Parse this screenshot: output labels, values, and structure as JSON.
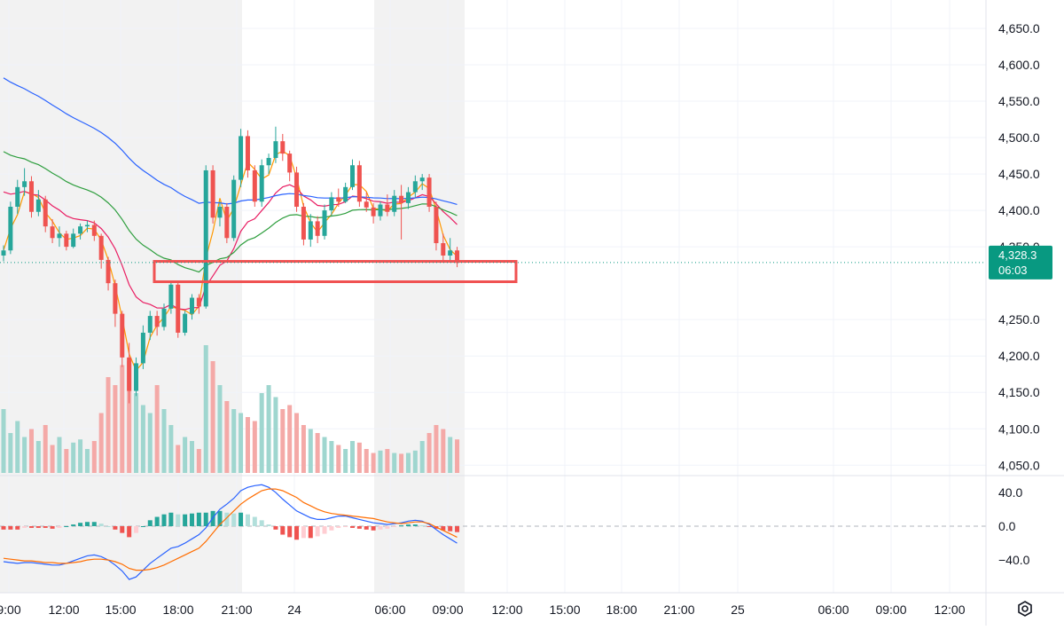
{
  "chart_data": {
    "type": "candlestick",
    "price_axis": {
      "ticks": [
        "4,650.0",
        "4,600.0",
        "4,550.0",
        "4,500.0",
        "4,450.0",
        "4,400.0",
        "4,350.0",
        "4,250.0",
        "4,200.0",
        "4,150.0",
        "4,100.0",
        "4,050.0"
      ],
      "ylim": [
        4035,
        4675
      ]
    },
    "macd_axis": {
      "ticks": [
        "40.0",
        "0.0",
        "−40.0"
      ],
      "ylim": [
        -68,
        50
      ]
    },
    "time_axis": {
      "ticks": [
        "9:00",
        "12:00",
        "15:00",
        "18:00",
        "21:00",
        "24",
        "06:00",
        "09:00",
        "12:00",
        "15:00",
        "18:00",
        "21:00",
        "25",
        "06:00",
        "09:00",
        "12:00"
      ]
    },
    "last_price": {
      "price": "4,328.3",
      "countdown": "06:03",
      "value": 4328.3
    },
    "highlight_zone": {
      "top": 4330,
      "bottom": 4302,
      "color": "#f05252"
    },
    "colors": {
      "up": "#26a69a",
      "down": "#ef5350",
      "vol_up": "#9fd6cf",
      "vol_down": "#f4a9a7",
      "ma_fast": "#ff9800",
      "ma_red": "#e91e63",
      "ma_green": "#2e9e3e",
      "ma_blue": "#2962ff",
      "macd": "#2962ff",
      "signal": "#ff6d00",
      "badge": "#089981",
      "session": "#f2f2f2"
    },
    "candles": [
      {
        "t": 0,
        "o": 4338,
        "h": 4352,
        "l": 4330,
        "c": 4345
      },
      {
        "t": 1,
        "o": 4345,
        "h": 4412,
        "l": 4340,
        "c": 4405
      },
      {
        "t": 2,
        "o": 4405,
        "h": 4442,
        "l": 4395,
        "c": 4432
      },
      {
        "t": 3,
        "o": 4432,
        "h": 4458,
        "l": 4420,
        "c": 4440
      },
      {
        "t": 4,
        "o": 4440,
        "h": 4447,
        "l": 4390,
        "c": 4398
      },
      {
        "t": 5,
        "o": 4398,
        "h": 4428,
        "l": 4392,
        "c": 4415
      },
      {
        "t": 6,
        "o": 4415,
        "h": 4420,
        "l": 4370,
        "c": 4378
      },
      {
        "t": 7,
        "o": 4378,
        "h": 4388,
        "l": 4355,
        "c": 4362
      },
      {
        "t": 8,
        "o": 4362,
        "h": 4378,
        "l": 4350,
        "c": 4368
      },
      {
        "t": 9,
        "o": 4368,
        "h": 4372,
        "l": 4345,
        "c": 4350
      },
      {
        "t": 10,
        "o": 4350,
        "h": 4375,
        "l": 4348,
        "c": 4368
      },
      {
        "t": 11,
        "o": 4368,
        "h": 4382,
        "l": 4360,
        "c": 4378
      },
      {
        "t": 12,
        "o": 4378,
        "h": 4386,
        "l": 4370,
        "c": 4380
      },
      {
        "t": 13,
        "o": 4380,
        "h": 4386,
        "l": 4358,
        "c": 4365
      },
      {
        "t": 14,
        "o": 4365,
        "h": 4368,
        "l": 4320,
        "c": 4332
      },
      {
        "t": 15,
        "o": 4332,
        "h": 4336,
        "l": 4290,
        "c": 4300
      },
      {
        "t": 16,
        "o": 4300,
        "h": 4305,
        "l": 4240,
        "c": 4258
      },
      {
        "t": 17,
        "o": 4258,
        "h": 4262,
        "l": 4185,
        "c": 4198
      },
      {
        "t": 18,
        "o": 4198,
        "h": 4218,
        "l": 4135,
        "c": 4152
      },
      {
        "t": 19,
        "o": 4152,
        "h": 4198,
        "l": 4145,
        "c": 4190
      },
      {
        "t": 20,
        "o": 4190,
        "h": 4242,
        "l": 4182,
        "c": 4232
      },
      {
        "t": 21,
        "o": 4232,
        "h": 4262,
        "l": 4222,
        "c": 4255
      },
      {
        "t": 22,
        "o": 4255,
        "h": 4262,
        "l": 4228,
        "c": 4240
      },
      {
        "t": 23,
        "o": 4240,
        "h": 4272,
        "l": 4235,
        "c": 4265
      },
      {
        "t": 24,
        "o": 4265,
        "h": 4303,
        "l": 4258,
        "c": 4298
      },
      {
        "t": 25,
        "o": 4298,
        "h": 4302,
        "l": 4225,
        "c": 4232
      },
      {
        "t": 26,
        "o": 4232,
        "h": 4262,
        "l": 4228,
        "c": 4258
      },
      {
        "t": 27,
        "o": 4258,
        "h": 4285,
        "l": 4250,
        "c": 4280
      },
      {
        "t": 28,
        "o": 4280,
        "h": 4285,
        "l": 4258,
        "c": 4268
      },
      {
        "t": 29,
        "o": 4268,
        "h": 4462,
        "l": 4265,
        "c": 4455
      },
      {
        "t": 30,
        "o": 4455,
        "h": 4462,
        "l": 4382,
        "c": 4390
      },
      {
        "t": 31,
        "o": 4390,
        "h": 4412,
        "l": 4378,
        "c": 4405
      },
      {
        "t": 32,
        "o": 4405,
        "h": 4410,
        "l": 4355,
        "c": 4362
      },
      {
        "t": 33,
        "o": 4362,
        "h": 4448,
        "l": 4358,
        "c": 4442
      },
      {
        "t": 34,
        "o": 4442,
        "h": 4512,
        "l": 4432,
        "c": 4502
      },
      {
        "t": 35,
        "o": 4502,
        "h": 4510,
        "l": 4445,
        "c": 4455
      },
      {
        "t": 36,
        "o": 4455,
        "h": 4462,
        "l": 4405,
        "c": 4412
      },
      {
        "t": 37,
        "o": 4412,
        "h": 4470,
        "l": 4405,
        "c": 4462
      },
      {
        "t": 38,
        "o": 4462,
        "h": 4478,
        "l": 4450,
        "c": 4472
      },
      {
        "t": 39,
        "o": 4472,
        "h": 4515,
        "l": 4465,
        "c": 4495
      },
      {
        "t": 40,
        "o": 4495,
        "h": 4505,
        "l": 4468,
        "c": 4478
      },
      {
        "t": 41,
        "o": 4478,
        "h": 4482,
        "l": 4440,
        "c": 4452
      },
      {
        "t": 42,
        "o": 4452,
        "h": 4460,
        "l": 4398,
        "c": 4405
      },
      {
        "t": 43,
        "o": 4405,
        "h": 4410,
        "l": 4352,
        "c": 4360
      },
      {
        "t": 44,
        "o": 4360,
        "h": 4395,
        "l": 4350,
        "c": 4385
      },
      {
        "t": 45,
        "o": 4385,
        "h": 4392,
        "l": 4355,
        "c": 4365
      },
      {
        "t": 46,
        "o": 4365,
        "h": 4408,
        "l": 4360,
        "c": 4400
      },
      {
        "t": 47,
        "o": 4400,
        "h": 4425,
        "l": 4392,
        "c": 4418
      },
      {
        "t": 48,
        "o": 4418,
        "h": 4430,
        "l": 4405,
        "c": 4412
      },
      {
        "t": 49,
        "o": 4412,
        "h": 4438,
        "l": 4410,
        "c": 4432
      },
      {
        "t": 50,
        "o": 4432,
        "h": 4470,
        "l": 4428,
        "c": 4462
      },
      {
        "t": 51,
        "o": 4462,
        "h": 4468,
        "l": 4405,
        "c": 4412
      },
      {
        "t": 52,
        "o": 4412,
        "h": 4425,
        "l": 4398,
        "c": 4404
      },
      {
        "t": 53,
        "o": 4404,
        "h": 4410,
        "l": 4382,
        "c": 4392
      },
      {
        "t": 54,
        "o": 4392,
        "h": 4412,
        "l": 4386,
        "c": 4408
      },
      {
        "t": 55,
        "o": 4408,
        "h": 4422,
        "l": 4392,
        "c": 4398
      },
      {
        "t": 56,
        "o": 4398,
        "h": 4428,
        "l": 4392,
        "c": 4420
      },
      {
        "t": 57,
        "o": 4420,
        "h": 4435,
        "l": 4360,
        "c": 4410
      },
      {
        "t": 58,
        "o": 4410,
        "h": 4432,
        "l": 4402,
        "c": 4425
      },
      {
        "t": 59,
        "o": 4425,
        "h": 4448,
        "l": 4418,
        "c": 4440
      },
      {
        "t": 60,
        "o": 4440,
        "h": 4450,
        "l": 4428,
        "c": 4445
      },
      {
        "t": 61,
        "o": 4445,
        "h": 4450,
        "l": 4398,
        "c": 4405
      },
      {
        "t": 62,
        "o": 4405,
        "h": 4412,
        "l": 4345,
        "c": 4355
      },
      {
        "t": 63,
        "o": 4355,
        "h": 4368,
        "l": 4330,
        "c": 4338
      },
      {
        "t": 64,
        "o": 4338,
        "h": 4362,
        "l": 4330,
        "c": 4345
      },
      {
        "t": 65,
        "o": 4345,
        "h": 4350,
        "l": 4322,
        "c": 4328
      }
    ],
    "volumes": [
      80,
      50,
      65,
      45,
      55,
      40,
      60,
      35,
      45,
      30,
      38,
      42,
      30,
      40,
      75,
      120,
      110,
      135,
      140,
      100,
      85,
      75,
      110,
      80,
      60,
      35,
      45,
      40,
      30,
      160,
      140,
      110,
      90,
      80,
      75,
      70,
      65,
      100,
      110,
      95,
      80,
      85,
      75,
      60,
      55,
      50,
      45,
      40,
      35,
      30,
      40,
      38,
      30,
      25,
      28,
      30,
      25,
      24,
      25,
      28,
      40,
      50,
      60,
      55,
      45,
      42
    ],
    "macd": {
      "macd_line": [
        -42,
        -43,
        -44,
        -43,
        -43,
        -44,
        -45,
        -46,
        -46,
        -44,
        -41,
        -38,
        -35,
        -34,
        -36,
        -40,
        -46,
        -53,
        -63,
        -60,
        -52,
        -44,
        -38,
        -32,
        -26,
        -24,
        -20,
        -15,
        -10,
        -2,
        10,
        20,
        26,
        33,
        42,
        46,
        48,
        49,
        46,
        40,
        32,
        25,
        18,
        14,
        10,
        8,
        8,
        10,
        12,
        12,
        10,
        8,
        6,
        4,
        3,
        2,
        3,
        4,
        6,
        7,
        6,
        2,
        -4,
        -10,
        -15,
        -20
      ],
      "signal_line": [
        -38,
        -39,
        -40,
        -41,
        -41,
        -42,
        -43,
        -43,
        -44,
        -44,
        -43,
        -42,
        -40,
        -39,
        -39,
        -40,
        -42,
        -45,
        -50,
        -52,
        -52,
        -51,
        -49,
        -46,
        -42,
        -38,
        -34,
        -30,
        -26,
        -18,
        -8,
        2,
        10,
        18,
        26,
        32,
        37,
        42,
        44,
        44,
        42,
        38,
        34,
        28,
        24,
        20,
        17,
        15,
        14,
        13,
        12,
        11,
        10,
        9,
        7,
        5,
        4,
        3,
        4,
        5,
        5,
        3,
        -1,
        -5,
        -9,
        -13
      ]
    },
    "ma_periods_note": ""
  }
}
